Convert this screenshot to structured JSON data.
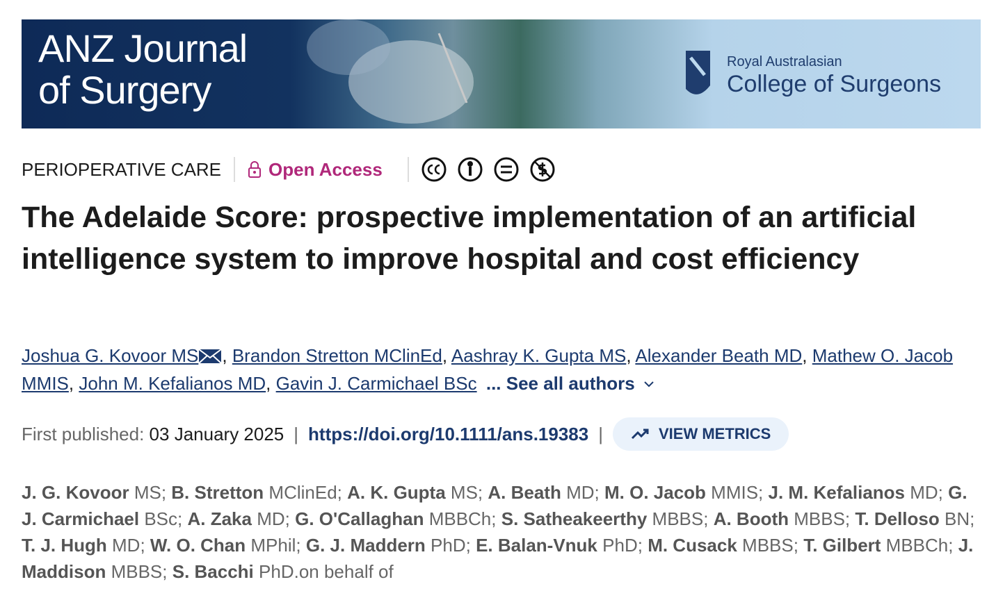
{
  "banner": {
    "journal_line1": "ANZ Journal",
    "journal_line2": "of Surgery",
    "college_line1": "Royal Australasian",
    "college_line2": "College of Surgeons"
  },
  "section": "PERIOPERATIVE CARE",
  "access": "Open Access",
  "title": "The Adelaide Score: prospective implementation of an artificial intelligence system to improve hospital and cost efficiency",
  "authors": [
    {
      "name": "Joshua G. Kovoor MS",
      "sep": ","
    },
    {
      "name": "Brandon Stretton MClinEd",
      "sep": ","
    },
    {
      "name": "Aashray K. Gupta MS",
      "sep": ","
    },
    {
      "name": "Alexander Beath MD",
      "sep": ","
    },
    {
      "name": "Mathew O. Jacob MMIS",
      "sep": ","
    },
    {
      "name": "John M. Kefalianos MD",
      "sep": ","
    },
    {
      "name": "Gavin J. Carmichael BSc"
    }
  ],
  "see_all": "... See all authors",
  "published": {
    "label": "First published:",
    "date": "03 January 2025",
    "separator": "|",
    "doi": "https://doi.org/10.1111/ans.19383",
    "metrics": "VIEW METRICS"
  },
  "byline": [
    {
      "name": "J. G. Kovoor",
      "degree": "MS;"
    },
    {
      "name": "B. Stretton",
      "degree": "MClinEd;"
    },
    {
      "name": "A. K. Gupta",
      "degree": "MS;"
    },
    {
      "name": "A. Beath",
      "degree": "MD;"
    },
    {
      "name": "M. O. Jacob",
      "degree": "MMIS;"
    },
    {
      "name": "J. M. Kefalianos",
      "degree": "MD;"
    },
    {
      "name": "G. J. Carmichael",
      "degree": "BSc;"
    },
    {
      "name": "A. Zaka",
      "degree": "MD;"
    },
    {
      "name": "G. O'Callaghan",
      "degree": "MBBCh;"
    },
    {
      "name": "S. Satheakeerthy",
      "degree": "MBBS;"
    },
    {
      "name": "A. Booth",
      "degree": "MBBS;"
    },
    {
      "name": "T. Delloso",
      "degree": "BN;"
    },
    {
      "name": "T. J. Hugh",
      "degree": "MD;"
    },
    {
      "name": "W. O. Chan",
      "degree": "MPhil;"
    },
    {
      "name": "G. J. Maddern",
      "degree": "PhD;"
    },
    {
      "name": "E. Balan-Vnuk",
      "degree": "PhD;"
    },
    {
      "name": "M. Cusack",
      "degree": "MBBS;"
    },
    {
      "name": "T. Gilbert",
      "degree": "MBBCh;"
    },
    {
      "name": "J. Maddison",
      "degree": "MBBS;"
    },
    {
      "name": "S. Bacchi",
      "degree": "PhD.on behalf of"
    }
  ]
}
